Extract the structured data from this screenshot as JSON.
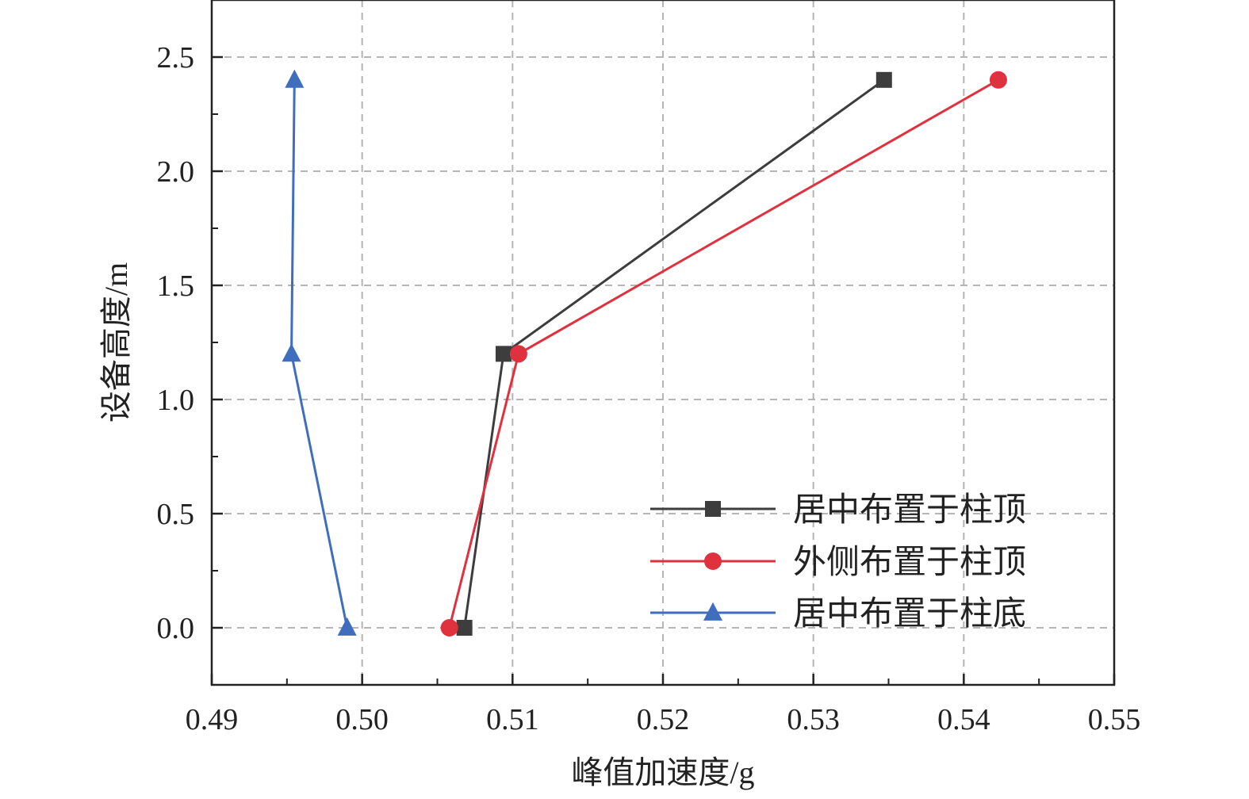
{
  "chart_data": {
    "type": "line",
    "title": "",
    "xlabel": "峰值加速度/g",
    "ylabel": "设备高度/m",
    "xlim": [
      0.49,
      0.55
    ],
    "ylim": [
      -0.25,
      2.75
    ],
    "xticks": [
      "0.49",
      "0.50",
      "0.51",
      "0.52",
      "0.53",
      "0.54",
      "0.55"
    ],
    "yticks": [
      "0.0",
      "0.5",
      "1.0",
      "1.5",
      "2.0",
      "2.5"
    ],
    "grid": true,
    "legend_position": "bottom-right",
    "series": [
      {
        "name": "居中布置于柱顶",
        "color": "#3d3d3d",
        "marker": "square",
        "points": [
          [
            0.5068,
            0.0
          ],
          [
            0.5094,
            1.2
          ],
          [
            0.5347,
            2.4
          ]
        ]
      },
      {
        "name": "外侧布置于柱顶",
        "color": "#e0313f",
        "marker": "circle",
        "points": [
          [
            0.5058,
            0.0
          ],
          [
            0.5104,
            1.2
          ],
          [
            0.5423,
            2.4
          ]
        ]
      },
      {
        "name": "居中布置于柱底",
        "color": "#3f6ebf",
        "marker": "triangle",
        "points": [
          [
            0.499,
            0.0
          ],
          [
            0.4953,
            1.2
          ],
          [
            0.4955,
            2.4
          ]
        ]
      }
    ]
  }
}
